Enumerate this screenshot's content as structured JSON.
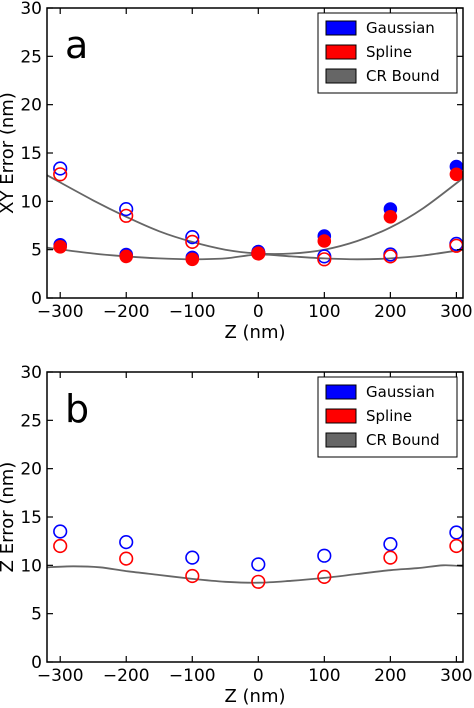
{
  "colors": {
    "gaussian": "#0000ff",
    "spline": "#ff0000",
    "cr_bound": "#666666"
  },
  "chart_data": [
    {
      "type": "scatter",
      "panel_label": "a",
      "title": "",
      "xlabel": "Z (nm)",
      "ylabel": "XY Error (nm)",
      "xlim": [
        -320,
        310
      ],
      "ylim": [
        0,
        30
      ],
      "xticks": [
        "−300",
        "−200",
        "−100",
        "0",
        "100",
        "200",
        "300"
      ],
      "xtick_values": [
        -300,
        -200,
        -100,
        0,
        100,
        200,
        300
      ],
      "yticks": [
        "0",
        "5",
        "10",
        "15",
        "20",
        "25",
        "30"
      ],
      "ytick_values": [
        0,
        5,
        10,
        15,
        20,
        25,
        30
      ],
      "legend": [
        "Gaussian",
        "Spline",
        "CR Bound"
      ],
      "legend_position": "top-right",
      "x": [
        -300,
        -200,
        -100,
        0,
        100,
        200,
        300
      ],
      "series": [
        {
          "name": "Gaussian",
          "marker": "filled",
          "values": [
            5.5,
            4.5,
            4.2,
            4.8,
            6.4,
            9.2,
            13.6
          ]
        },
        {
          "name": "Gaussian",
          "marker": "open",
          "values": [
            13.4,
            9.2,
            6.3,
            4.7,
            4.3,
            4.5,
            5.6
          ]
        },
        {
          "name": "Spline",
          "marker": "filled",
          "values": [
            5.3,
            4.3,
            4.0,
            4.6,
            5.9,
            8.4,
            12.8
          ]
        },
        {
          "name": "Spline",
          "marker": "open",
          "values": [
            12.8,
            8.5,
            5.8,
            4.6,
            4.0,
            4.3,
            5.4
          ]
        }
      ],
      "curves": [
        {
          "name": "CR Bound",
          "x": [
            -320,
            -250,
            -200,
            -150,
            -100,
            -50,
            0,
            50,
            100,
            150,
            200,
            250,
            310
          ],
          "values": [
            12.7,
            10.1,
            8.4,
            6.9,
            5.8,
            5.0,
            4.6,
            4.6,
            5.0,
            5.9,
            7.3,
            9.3,
            12.4
          ]
        },
        {
          "name": "CR Bound",
          "x": [
            -320,
            -250,
            -200,
            -150,
            -100,
            -50,
            0,
            50,
            100,
            150,
            200,
            250,
            310
          ],
          "values": [
            5.2,
            4.6,
            4.3,
            4.1,
            4.0,
            4.1,
            4.5,
            4.3,
            4.1,
            4.0,
            4.1,
            4.4,
            5.0
          ]
        }
      ]
    },
    {
      "type": "scatter",
      "panel_label": "b",
      "title": "",
      "xlabel": "Z (nm)",
      "ylabel": "Z Error (nm)",
      "xlim": [
        -320,
        310
      ],
      "ylim": [
        0,
        30
      ],
      "xticks": [
        "−300",
        "−200",
        "−100",
        "0",
        "100",
        "200",
        "300"
      ],
      "xtick_values": [
        -300,
        -200,
        -100,
        0,
        100,
        200,
        300
      ],
      "yticks": [
        "0",
        "5",
        "10",
        "15",
        "20",
        "25",
        "30"
      ],
      "ytick_values": [
        0,
        5,
        10,
        15,
        20,
        25,
        30
      ],
      "legend": [
        "Gaussian",
        "Spline",
        "CR Bound"
      ],
      "legend_position": "top-right",
      "x": [
        -300,
        -200,
        -100,
        0,
        100,
        200,
        300
      ],
      "series": [
        {
          "name": "Gaussian",
          "marker": "open",
          "values": [
            13.5,
            12.4,
            10.8,
            10.1,
            11.0,
            12.2,
            13.4
          ]
        },
        {
          "name": "Spline",
          "marker": "open",
          "values": [
            12.0,
            10.7,
            8.9,
            8.3,
            8.8,
            10.8,
            12.0
          ]
        }
      ],
      "curves": [
        {
          "name": "CR Bound",
          "x": [
            -320,
            -280,
            -240,
            -200,
            -150,
            -100,
            -50,
            0,
            50,
            100,
            150,
            200,
            240,
            280,
            310
          ],
          "values": [
            9.8,
            9.9,
            9.8,
            9.4,
            9.0,
            8.6,
            8.3,
            8.2,
            8.4,
            8.7,
            9.1,
            9.5,
            9.7,
            10.0,
            9.9
          ]
        }
      ]
    }
  ]
}
